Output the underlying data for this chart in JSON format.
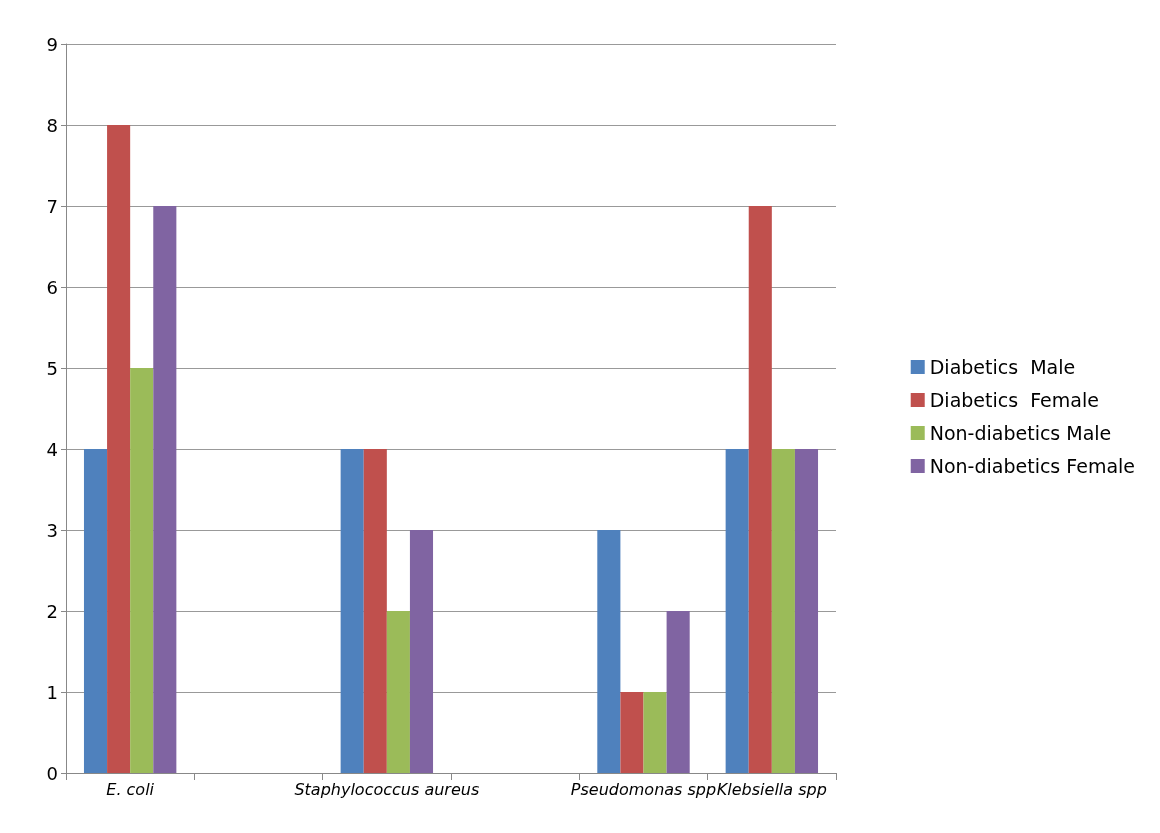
{
  "chart_data": {
    "type": "bar",
    "categories": [
      "E. coli",
      null,
      "Staphylococcus aureus",
      null,
      "Pseudomonas spp",
      "Klebsiella spp"
    ],
    "series": [
      {
        "name": "Diabetics  Male",
        "color": "#4f81bd",
        "values": [
          4,
          null,
          4,
          null,
          3,
          4
        ]
      },
      {
        "name": "Diabetics  Female",
        "color": "#c0504d",
        "values": [
          8,
          null,
          4,
          null,
          1,
          7
        ]
      },
      {
        "name": "Non-diabetics Male",
        "color": "#9bbb59",
        "values": [
          5,
          null,
          2,
          null,
          1,
          4
        ]
      },
      {
        "name": "Non-diabetics Female",
        "color": "#8064a2",
        "values": [
          7,
          null,
          3,
          null,
          2,
          4
        ]
      }
    ],
    "ylim": [
      0,
      9
    ],
    "yticks": [
      0,
      1,
      2,
      3,
      4,
      5,
      6,
      7,
      8,
      9
    ],
    "grid": "y",
    "legend": "right"
  }
}
